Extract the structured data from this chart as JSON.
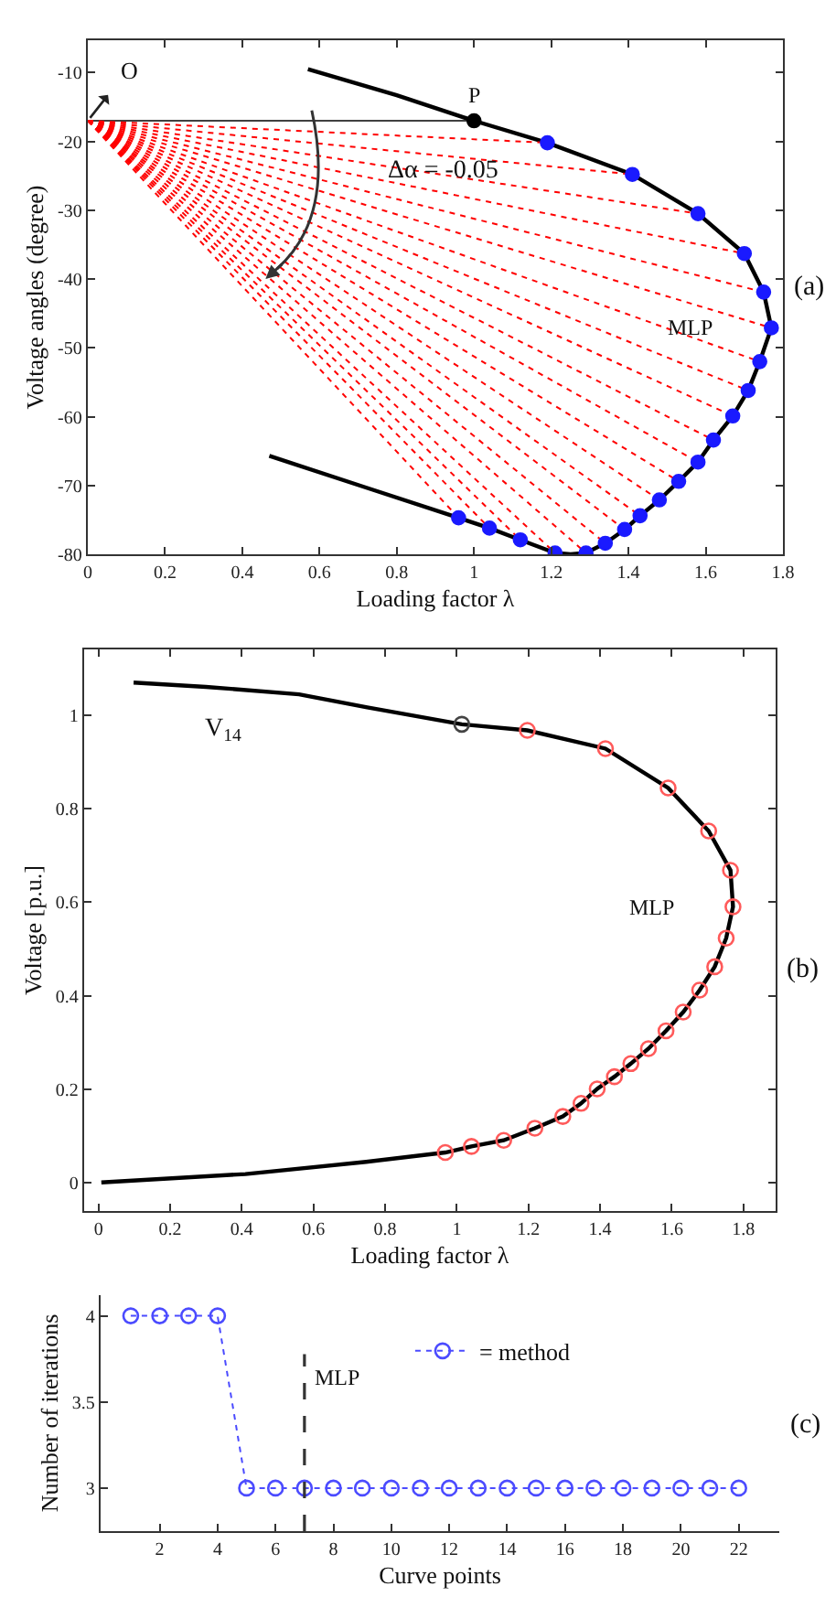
{
  "chart_data": [
    {
      "type": "line",
      "xlabel": "Loading factor λ",
      "ylabel": "Voltage angles (degree)",
      "xlim": [
        0,
        1.8
      ],
      "ylim": [
        -80,
        -5.3
      ],
      "xticks": [
        0,
        0.2,
        0.4,
        0.6,
        0.8,
        1,
        1.2,
        1.4,
        1.6,
        1.8
      ],
      "yticks": [
        -10,
        -20,
        -30,
        -40,
        -50,
        -60,
        -70,
        -80
      ],
      "annotations": [
        {
          "text": "O",
          "x": 0,
          "y": -17
        },
        {
          "text": "P",
          "x": 1.0,
          "y": -17
        },
        "Δα = -0.05",
        {
          "text": "MLP",
          "x": 1.77,
          "y": -47.1
        },
        "(a)"
      ],
      "series": [
        {
          "type": "line",
          "color": "#000000",
          "marker": "none",
          "line_style": "solid",
          "x": [
            0.57,
            0.8,
            1.0,
            1.19,
            1.41,
            1.58,
            1.7,
            1.75,
            1.77,
            1.74,
            1.71,
            1.67,
            1.62,
            1.58,
            1.53,
            1.48,
            1.43,
            1.39,
            1.34,
            1.29,
            1.25,
            1.21,
            1.12,
            1.04,
            0.96,
            0.72,
            0.47
          ],
          "values": [
            -9.5,
            -13.3,
            -17,
            -20.2,
            -24.8,
            -30.5,
            -36.3,
            -41.9,
            -47.1,
            -52.0,
            -56.2,
            -59.9,
            -63.4,
            -66.6,
            -69.4,
            -72.1,
            -74.4,
            -76.4,
            -78.4,
            -79.8,
            -80,
            -79.8,
            -77.9,
            -76.2,
            -74.7,
            -70.3,
            -65.7
          ]
        },
        {
          "type": "line",
          "color": "#000000",
          "marker": "none",
          "line_style": "solid",
          "x": [
            0,
            1.0
          ],
          "values": [
            -17,
            -17
          ]
        },
        {
          "type": "line",
          "color": "#ff0000",
          "marker": "none",
          "line_style": "dotted",
          "x": [
            0,
            1.19
          ],
          "values": [
            -17,
            -20.2
          ]
        },
        {
          "type": "line",
          "color": "#ff0000",
          "marker": "none",
          "line_style": "dotted",
          "x": [
            0,
            1.41
          ],
          "values": [
            -17,
            -24.8
          ]
        },
        {
          "type": "line",
          "color": "#ff0000",
          "marker": "none",
          "line_style": "dotted",
          "x": [
            0,
            1.58
          ],
          "values": [
            -17,
            -30.5
          ]
        },
        {
          "type": "line",
          "color": "#ff0000",
          "marker": "none",
          "line_style": "dotted",
          "x": [
            0,
            1.7
          ],
          "values": [
            -17,
            -36.3
          ]
        },
        {
          "type": "line",
          "color": "#ff0000",
          "marker": "none",
          "line_style": "dotted",
          "x": [
            0,
            1.75
          ],
          "values": [
            -17,
            -41.9
          ]
        },
        {
          "type": "line",
          "color": "#ff0000",
          "marker": "none",
          "line_style": "dotted",
          "x": [
            0,
            1.77
          ],
          "values": [
            -17,
            -47.1
          ]
        },
        {
          "type": "line",
          "color": "#ff0000",
          "marker": "none",
          "line_style": "dotted",
          "x": [
            0,
            1.74
          ],
          "values": [
            -17,
            -52.0
          ]
        },
        {
          "type": "line",
          "color": "#ff0000",
          "marker": "none",
          "line_style": "dotted",
          "x": [
            0,
            1.71
          ],
          "values": [
            -17,
            -56.2
          ]
        },
        {
          "type": "line",
          "color": "#ff0000",
          "marker": "none",
          "line_style": "dotted",
          "x": [
            0,
            1.67
          ],
          "values": [
            -17,
            -59.9
          ]
        },
        {
          "type": "line",
          "color": "#ff0000",
          "marker": "none",
          "line_style": "dotted",
          "x": [
            0,
            1.62
          ],
          "values": [
            -17,
            -63.4
          ]
        },
        {
          "type": "line",
          "color": "#ff0000",
          "marker": "none",
          "line_style": "dotted",
          "x": [
            0,
            1.58
          ],
          "values": [
            -17,
            -66.6
          ]
        },
        {
          "type": "line",
          "color": "#ff0000",
          "marker": "none",
          "line_style": "dotted",
          "x": [
            0,
            1.53
          ],
          "values": [
            -17,
            -69.4
          ]
        },
        {
          "type": "line",
          "color": "#ff0000",
          "marker": "none",
          "line_style": "dotted",
          "x": [
            0,
            1.48
          ],
          "values": [
            -17,
            -72.1
          ]
        },
        {
          "type": "line",
          "color": "#ff0000",
          "marker": "none",
          "line_style": "dotted",
          "x": [
            0,
            1.43
          ],
          "values": [
            -17,
            -74.4
          ]
        },
        {
          "type": "line",
          "color": "#ff0000",
          "marker": "none",
          "line_style": "dotted",
          "x": [
            0,
            1.39
          ],
          "values": [
            -17,
            -76.4
          ]
        },
        {
          "type": "line",
          "color": "#ff0000",
          "marker": "none",
          "line_style": "dotted",
          "x": [
            0,
            1.34
          ],
          "values": [
            -17,
            -78.4
          ]
        },
        {
          "type": "line",
          "color": "#ff0000",
          "marker": "none",
          "line_style": "dotted",
          "x": [
            0,
            1.29
          ],
          "values": [
            -17,
            -79.8
          ]
        },
        {
          "type": "line",
          "color": "#ff0000",
          "marker": "none",
          "line_style": "dotted",
          "x": [
            0,
            1.21
          ],
          "values": [
            -17,
            -79.8
          ]
        },
        {
          "type": "line",
          "color": "#ff0000",
          "marker": "none",
          "line_style": "dotted",
          "x": [
            0,
            1.12
          ],
          "values": [
            -17,
            -77.9
          ]
        },
        {
          "type": "line",
          "color": "#ff0000",
          "marker": "none",
          "line_style": "dotted",
          "x": [
            0,
            1.04
          ],
          "values": [
            -17,
            -76.2
          ]
        },
        {
          "type": "line",
          "color": "#ff0000",
          "marker": "none",
          "line_style": "dotted",
          "x": [
            0,
            0.96
          ],
          "values": [
            -17,
            -74.7
          ]
        },
        {
          "type": "scatter",
          "color": "#1a1aff",
          "marker": "circle",
          "x": [
            1.19,
            1.41,
            1.58,
            1.7,
            1.75,
            1.77,
            1.74,
            1.71,
            1.67,
            1.62,
            1.58,
            1.53,
            1.48,
            1.43,
            1.39,
            1.34,
            1.29,
            1.21,
            1.12,
            1.04,
            0.96
          ],
          "values": [
            -20.2,
            -24.8,
            -30.5,
            -36.3,
            -41.9,
            -47.1,
            -52.0,
            -56.2,
            -59.9,
            -63.4,
            -66.6,
            -69.4,
            -72.1,
            -74.4,
            -76.4,
            -78.4,
            -79.8,
            -79.8,
            -77.9,
            -76.2,
            -74.7
          ]
        },
        {
          "type": "scatter",
          "color": "#000000",
          "marker": "circle",
          "x": [
            1.0
          ],
          "values": [
            -17
          ]
        }
      ]
    },
    {
      "type": "line",
      "xlabel": "Loading factor λ",
      "ylabel": "Voltage [p.u.]",
      "xlim": [
        -0.04,
        1.89
      ],
      "ylim": [
        -0.06,
        1.14
      ],
      "xticks": [
        0,
        0.2,
        0.4,
        0.6,
        0.8,
        1,
        1.2,
        1.4,
        1.6,
        1.8
      ],
      "yticks": [
        0,
        0.2,
        0.4,
        0.6,
        0.8,
        1
      ],
      "annotations": [
        "V$_{14}$",
        {
          "text": "MLP",
          "x": 1.771,
          "y": 0.59
        },
        "(b)"
      ],
      "series": [
        {
          "type": "line",
          "color": "#000000",
          "marker": "none",
          "line_style": "solid",
          "x": [
            0.098,
            0.3,
            0.56,
            0.75,
            1.014,
            1.197,
            1.415,
            1.59,
            1.703,
            1.764,
            1.771,
            1.752,
            1.72,
            1.678,
            1.632,
            1.584,
            1.535,
            1.486,
            1.44,
            1.392,
            1.347,
            1.296,
            1.218,
            1.131,
            1.041,
            0.968,
            0.747,
            0.41,
            0.008
          ],
          "values": [
            1.069,
            1.06,
            1.044,
            1.016,
            0.98,
            0.967,
            0.928,
            0.844,
            0.752,
            0.668,
            0.59,
            0.523,
            0.462,
            0.412,
            0.365,
            0.325,
            0.287,
            0.255,
            0.227,
            0.201,
            0.17,
            0.142,
            0.117,
            0.091,
            0.078,
            0.065,
            0.045,
            0.019,
            0.001
          ]
        },
        {
          "type": "scatter",
          "color": "#ff5a5a",
          "marker": "circle",
          "x": [
            1.197,
            1.415,
            1.59,
            1.703,
            1.764,
            1.771,
            1.752,
            1.72,
            1.678,
            1.632,
            1.584,
            1.535,
            1.486,
            1.44,
            1.392,
            1.347,
            1.296,
            1.218,
            1.131,
            1.041,
            0.968
          ],
          "values": [
            0.967,
            0.928,
            0.844,
            0.752,
            0.668,
            0.59,
            0.523,
            0.462,
            0.412,
            0.365,
            0.325,
            0.287,
            0.255,
            0.227,
            0.201,
            0.17,
            0.142,
            0.117,
            0.091,
            0.078,
            0.065
          ]
        },
        {
          "type": "scatter",
          "color": "#444444",
          "marker": "circle",
          "x": [
            1.014
          ],
          "values": [
            0.98
          ]
        }
      ]
    },
    {
      "type": "line",
      "xlabel": "Curve points",
      "ylabel": "Number of iterations",
      "xlim": [
        -0.04,
        23.4
      ],
      "ylim": [
        2.75,
        4.12
      ],
      "xticks": [
        2,
        4,
        6,
        8,
        10,
        12,
        14,
        16,
        18,
        20,
        22
      ],
      "yticks": [
        3,
        3.5,
        4
      ],
      "legend": "top",
      "annotations": [
        "(c)"
      ],
      "ref_lines": [
        {
          "axis": "x",
          "value": 7,
          "label": "MLP",
          "color": "#333333",
          "line_style": "dashed"
        }
      ],
      "series": [
        {
          "name": "= method",
          "type": "line",
          "color": "#4b4bff",
          "marker": "circle",
          "line_style": "dotted",
          "x": [
            1,
            2,
            3,
            4,
            5,
            6,
            7,
            8,
            9,
            10,
            11,
            12,
            13,
            14,
            15,
            16,
            17,
            18,
            19,
            20,
            21,
            22
          ],
          "values": [
            4,
            4,
            4,
            4,
            3,
            3,
            3,
            3,
            3,
            3,
            3,
            3,
            3,
            3,
            3,
            3,
            3,
            3,
            3,
            3,
            3,
            3
          ]
        }
      ]
    }
  ]
}
